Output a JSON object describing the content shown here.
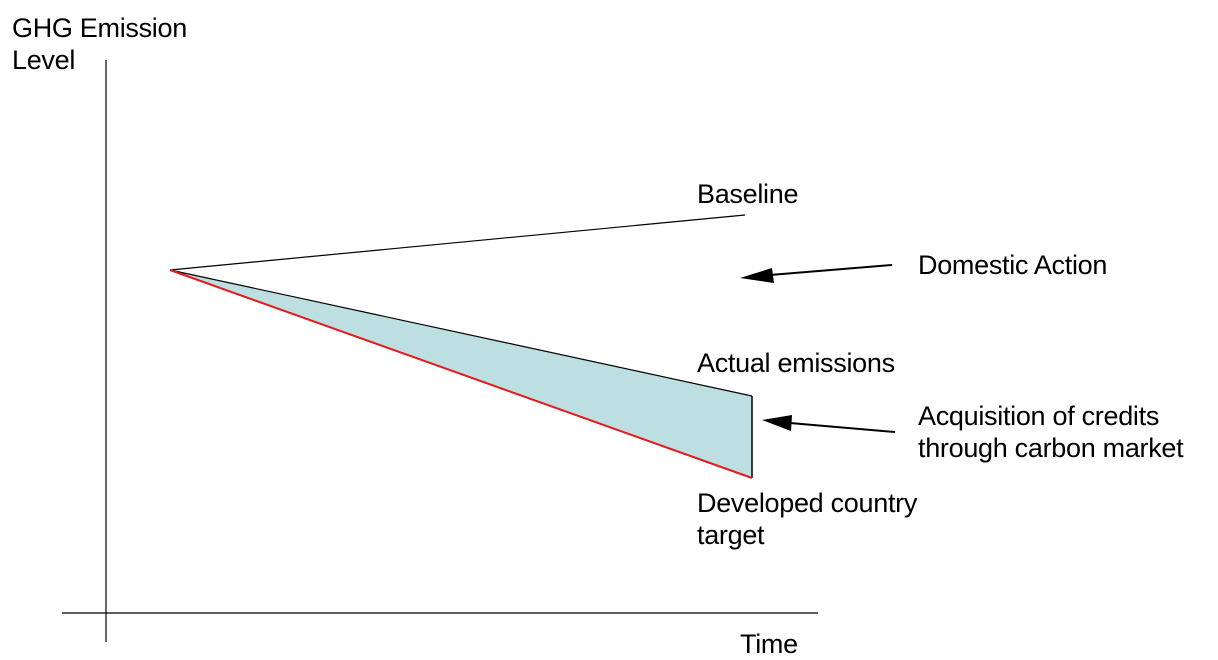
{
  "y_axis_label": [
    "GHG Emission",
    "Level"
  ],
  "x_axis_label": "Time",
  "lines": {
    "baseline": "Baseline",
    "actual": "Actual emissions",
    "target": [
      "Developed country",
      "target"
    ]
  },
  "annotations": {
    "domestic_action": "Domestic Action",
    "credits": [
      "Acquisition of credits",
      "through carbon market"
    ]
  },
  "colors": {
    "target_line": "#e31a1c",
    "gap_fill": "#bddfe2",
    "ink": "#000000"
  }
}
